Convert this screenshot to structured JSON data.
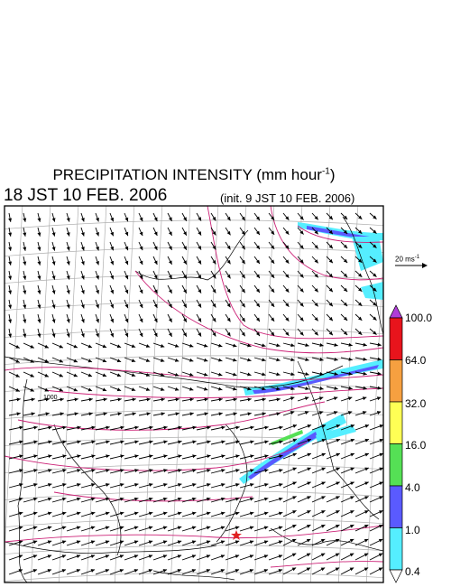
{
  "title": {
    "main": "PRECIPITATION INTENSITY (mm hour",
    "exp": "-1",
    "close": ")"
  },
  "subtitle": "18 JST 10 FEB. 2006",
  "init_note": "(init. 9 JST 10 FEB. 2006)",
  "contour_label": "1000",
  "reference_vector": {
    "text": "20 ms",
    "exp": "-1"
  },
  "marker_icon": "red-star-icon",
  "legend": {
    "levels": [
      "100.0",
      "64.0",
      "32.0",
      "16.0",
      "4.0",
      "1.0",
      "0.4"
    ],
    "colors": {
      "over": "#b03cd8",
      "64-100": "#e8141c",
      "32-64": "#f6a040",
      "16-32": "#ffff55",
      "4-16": "#55e055",
      "1-4": "#5a5aff",
      "0.4-1": "#55eeff",
      "under": "#ffffff"
    }
  },
  "colors": {
    "contour": "#cc2277",
    "grid": "#b0b0b0",
    "coast": "#000000",
    "arrow": "#000000"
  }
}
